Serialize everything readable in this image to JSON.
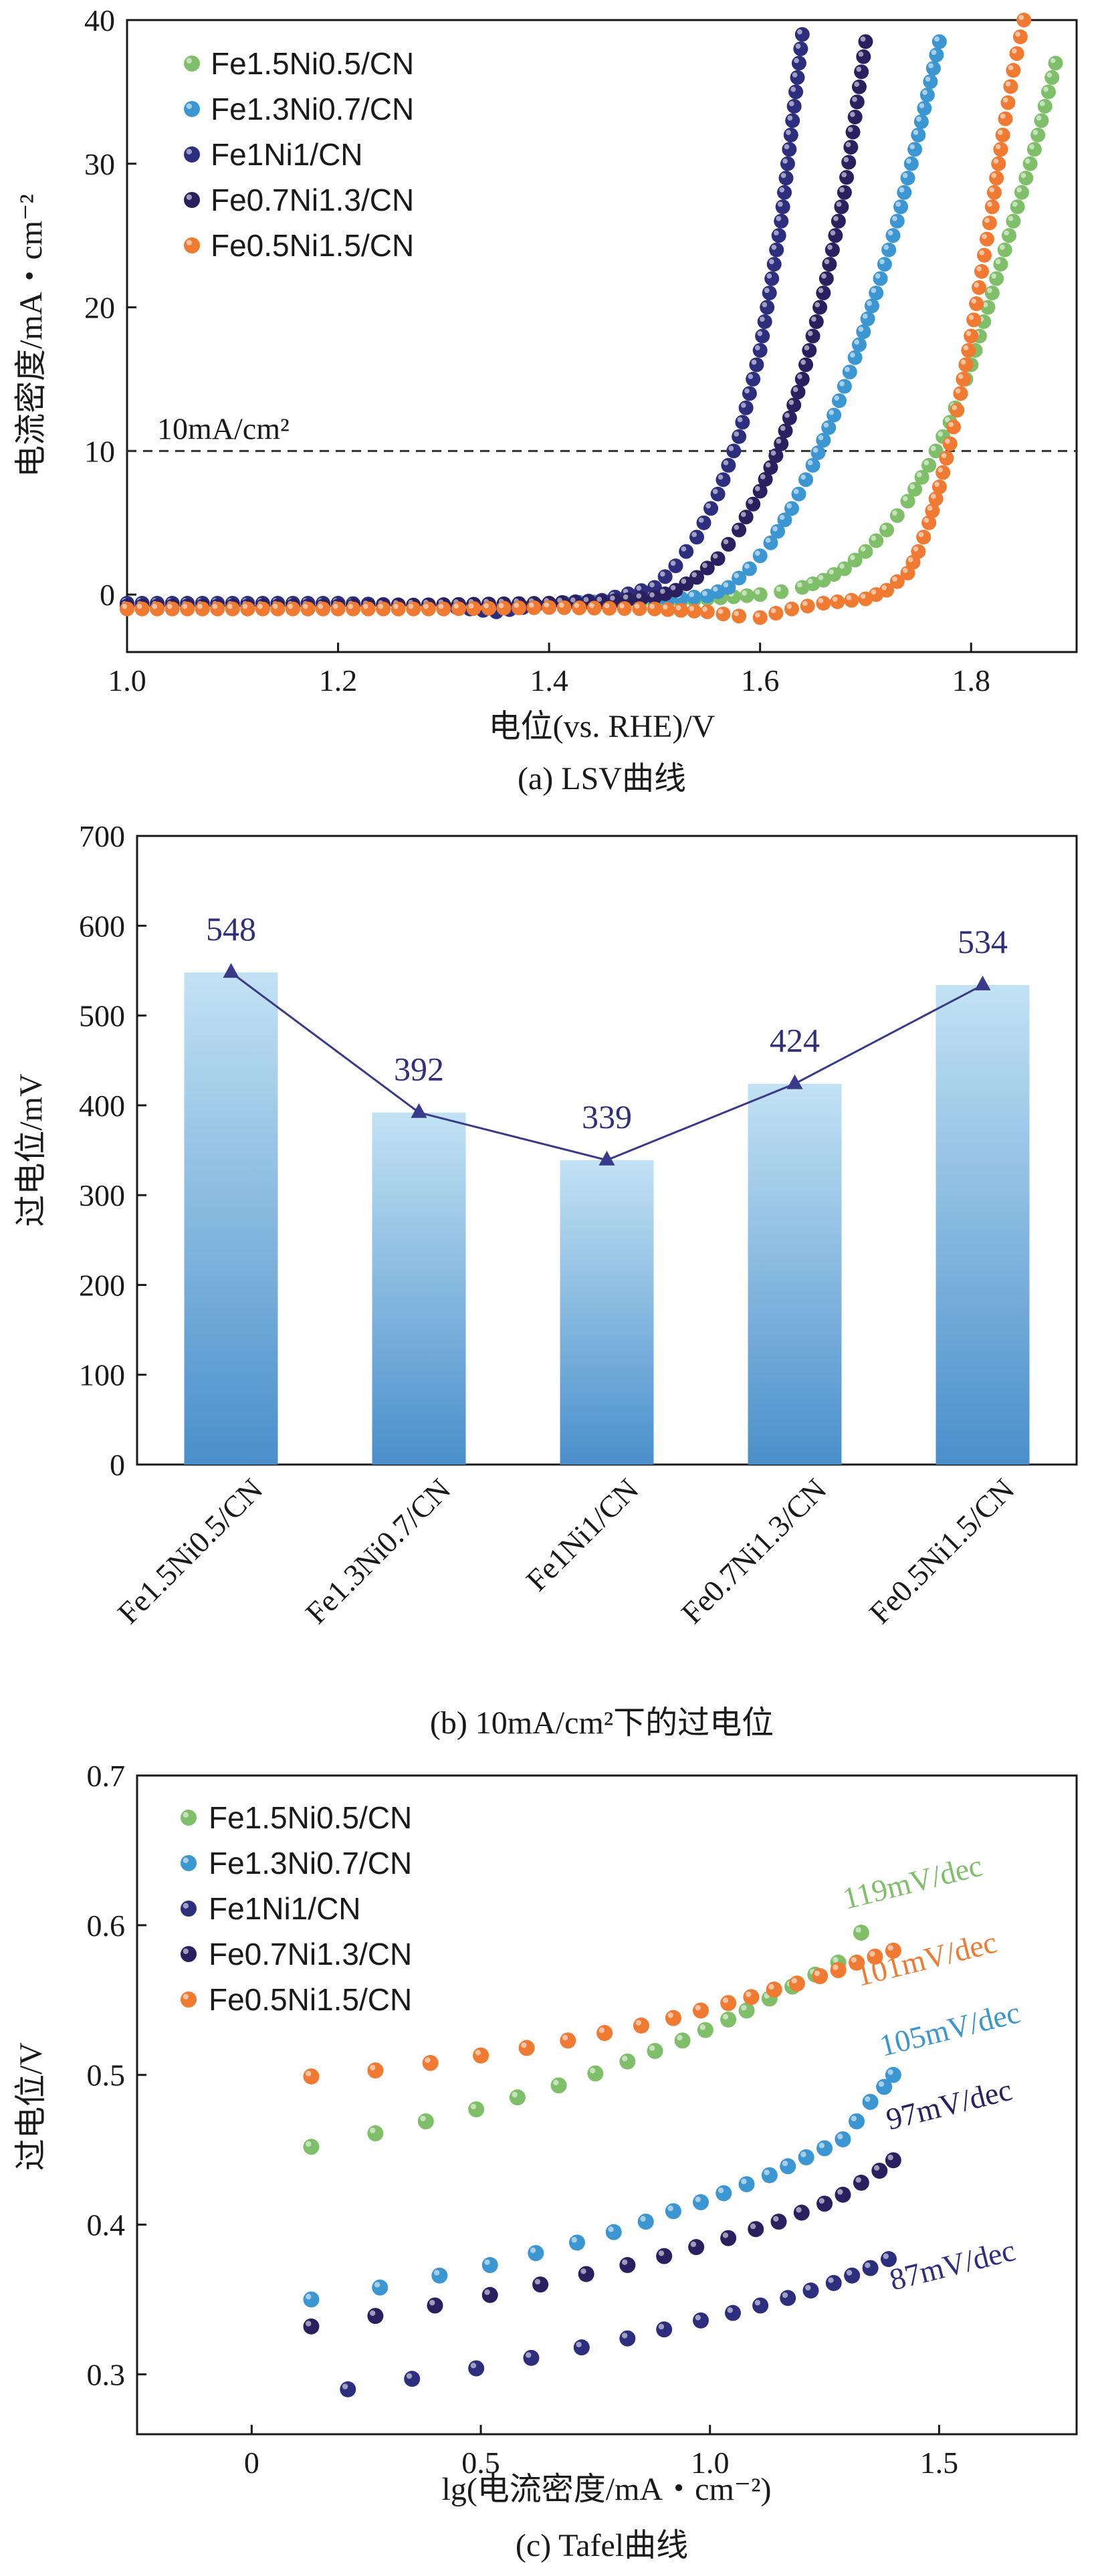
{
  "chart_data": [
    {
      "type": "scatter",
      "panel": "a",
      "caption": "(a) LSV曲线",
      "xlabel": "电位(vs. RHE)/V",
      "ylabel": "电流密度/mA・cm⁻²",
      "xlim": [
        1.0,
        1.9
      ],
      "ylim": [
        -4,
        40
      ],
      "xticks": [
        "1.0",
        "1.2",
        "1.4",
        "1.6",
        "1.8"
      ],
      "yticks": [
        "0",
        "10",
        "20",
        "30",
        "40"
      ],
      "reference_line": {
        "y": 10,
        "label": "10mA/cm²"
      },
      "legend_position": "top-left",
      "series": [
        {
          "name": "Fe1.5Ni0.5/CN",
          "color": "#7fbf6a",
          "x": [
            1.0,
            1.1,
            1.2,
            1.3,
            1.4,
            1.5,
            1.55,
            1.6,
            1.62,
            1.64,
            1.66,
            1.68,
            1.7,
            1.72,
            1.74,
            1.76,
            1.78,
            1.8,
            1.82,
            1.84,
            1.86,
            1.88
          ],
          "y": [
            -1,
            -1,
            -1,
            -1,
            -0.8,
            -0.6,
            -0.3,
            0,
            0.2,
            0.5,
            1,
            1.8,
            3,
            4.5,
            6.5,
            9,
            12,
            16,
            21,
            26,
            31,
            37
          ]
        },
        {
          "name": "Fe1.3Ni0.7/CN",
          "color": "#3c96d2",
          "x": [
            1.0,
            1.1,
            1.2,
            1.3,
            1.4,
            1.5,
            1.55,
            1.57,
            1.59,
            1.61,
            1.63,
            1.65,
            1.67,
            1.69,
            1.71,
            1.73,
            1.75,
            1.77
          ],
          "y": [
            -0.8,
            -0.8,
            -0.8,
            -0.7,
            -0.6,
            -0.4,
            -0.1,
            0.5,
            1.8,
            3.6,
            6,
            9,
            12.5,
            16.5,
            21,
            26,
            32,
            38.5
          ]
        },
        {
          "name": "Fe1Ni1/CN",
          "color": "#2e2e7e",
          "x": [
            1.0,
            1.1,
            1.2,
            1.3,
            1.35,
            1.4,
            1.45,
            1.5,
            1.52,
            1.54,
            1.56,
            1.58,
            1.6,
            1.62,
            1.64
          ],
          "y": [
            -0.6,
            -0.6,
            -0.6,
            -0.8,
            -1.2,
            -0.6,
            -0.4,
            0.5,
            2,
            4,
            7,
            11,
            17,
            26,
            39
          ]
        },
        {
          "name": "Fe0.7Ni1.3/CN",
          "color": "#2a205f",
          "x": [
            1.0,
            1.1,
            1.2,
            1.3,
            1.4,
            1.45,
            1.5,
            1.52,
            1.54,
            1.56,
            1.58,
            1.6,
            1.62,
            1.64,
            1.66,
            1.68,
            1.7
          ],
          "y": [
            -0.8,
            -0.8,
            -0.8,
            -0.7,
            -0.6,
            -0.5,
            -0.2,
            0.3,
            1.2,
            2.5,
            4.5,
            7.2,
            10.5,
            15,
            21,
            28,
            38.5
          ]
        },
        {
          "name": "Fe0.5Ni1.5/CN",
          "color": "#f07a32",
          "x": [
            1.0,
            1.1,
            1.2,
            1.3,
            1.4,
            1.5,
            1.55,
            1.58,
            1.6,
            1.63,
            1.66,
            1.7,
            1.72,
            1.74,
            1.75,
            1.76,
            1.77,
            1.78,
            1.79,
            1.8,
            1.81,
            1.82,
            1.83,
            1.84,
            1.85
          ],
          "y": [
            -1,
            -1,
            -1,
            -1,
            -0.9,
            -1,
            -1.2,
            -1.5,
            -1.6,
            -1,
            -0.6,
            -0.3,
            0.3,
            1.5,
            3,
            5,
            7.5,
            10.5,
            14,
            18,
            22.5,
            27,
            32,
            36.5,
            40
          ]
        }
      ]
    },
    {
      "type": "bar",
      "panel": "b",
      "caption": "(b) 10mA/cm²下的过电位",
      "ylabel": "过电位/mV",
      "ylim": [
        0,
        700
      ],
      "yticks": [
        "0",
        "100",
        "200",
        "300",
        "400",
        "500",
        "600",
        "700"
      ],
      "categories": [
        "Fe1.5Ni0.5/CN",
        "Fe1.3Ni0.7/CN",
        "Fe1Ni1/CN",
        "Fe0.7Ni1.3/CN",
        "Fe0.5Ni1.5/CN"
      ],
      "values": [
        548,
        392,
        339,
        424,
        534
      ],
      "labels": [
        "548",
        "392",
        "339",
        "424",
        "534"
      ],
      "line_overlay": true,
      "colors": {
        "bar_top": "#c2e2f4",
        "bar_bottom": "#4a8fcb",
        "line": "#3a3a8a"
      }
    },
    {
      "type": "scatter",
      "panel": "c",
      "caption": "(c) Tafel曲线",
      "xlabel": "lg(电流密度/mA・cm⁻²)",
      "ylabel": "过电位/V",
      "xlim": [
        -0.25,
        1.8
      ],
      "ylim": [
        0.26,
        0.7
      ],
      "xticks": [
        "0",
        "0.5",
        "1.0",
        "1.5"
      ],
      "yticks": [
        "0.3",
        "0.4",
        "0.5",
        "0.6",
        "0.7"
      ],
      "legend_position": "top-left",
      "series": [
        {
          "name": "Fe1.5Ni0.5/CN",
          "color": "#7fbf6a",
          "slope_label": "119mV/dec",
          "x": [
            0.13,
            0.27,
            0.38,
            0.49,
            0.58,
            0.67,
            0.75,
            0.82,
            0.88,
            0.94,
            0.99,
            1.04,
            1.08,
            1.13,
            1.18,
            1.23,
            1.28,
            1.33
          ],
          "y": [
            0.452,
            0.461,
            0.469,
            0.477,
            0.485,
            0.493,
            0.501,
            0.509,
            0.516,
            0.523,
            0.53,
            0.537,
            0.543,
            0.551,
            0.559,
            0.567,
            0.575,
            0.595
          ]
        },
        {
          "name": "Fe1.3Ni0.7/CN",
          "color": "#3c96d2",
          "slope_label": "105mV/dec",
          "x": [
            0.13,
            0.28,
            0.41,
            0.52,
            0.62,
            0.71,
            0.79,
            0.86,
            0.92,
            0.98,
            1.03,
            1.08,
            1.13,
            1.17,
            1.21,
            1.25,
            1.29,
            1.32,
            1.35,
            1.38,
            1.4
          ],
          "y": [
            0.35,
            0.358,
            0.366,
            0.373,
            0.381,
            0.388,
            0.395,
            0.402,
            0.409,
            0.415,
            0.421,
            0.427,
            0.433,
            0.439,
            0.445,
            0.451,
            0.457,
            0.469,
            0.482,
            0.492,
            0.5
          ]
        },
        {
          "name": "Fe1Ni1/CN",
          "color": "#2e2e7e",
          "slope_label": "87mV/dec",
          "x": [
            0.21,
            0.35,
            0.49,
            0.61,
            0.72,
            0.82,
            0.9,
            0.98,
            1.05,
            1.11,
            1.17,
            1.22,
            1.27,
            1.31,
            1.35,
            1.39
          ],
          "y": [
            0.29,
            0.297,
            0.304,
            0.311,
            0.318,
            0.324,
            0.33,
            0.336,
            0.341,
            0.346,
            0.351,
            0.356,
            0.361,
            0.366,
            0.371,
            0.377
          ]
        },
        {
          "name": "Fe0.7Ni1.3/CN",
          "color": "#2a205f",
          "slope_label": "97mV/dec",
          "x": [
            0.13,
            0.27,
            0.4,
            0.52,
            0.63,
            0.73,
            0.82,
            0.9,
            0.97,
            1.04,
            1.1,
            1.15,
            1.2,
            1.25,
            1.29,
            1.33,
            1.37,
            1.4
          ],
          "y": [
            0.332,
            0.339,
            0.346,
            0.353,
            0.36,
            0.367,
            0.373,
            0.379,
            0.385,
            0.391,
            0.397,
            0.402,
            0.408,
            0.414,
            0.42,
            0.428,
            0.436,
            0.443
          ]
        },
        {
          "name": "Fe0.5Ni1.5/CN",
          "color": "#f07a32",
          "slope_label": "101mV/dec",
          "x": [
            0.13,
            0.27,
            0.39,
            0.5,
            0.6,
            0.69,
            0.77,
            0.85,
            0.92,
            0.98,
            1.04,
            1.09,
            1.14,
            1.19,
            1.24,
            1.28,
            1.32,
            1.36,
            1.4
          ],
          "y": [
            0.499,
            0.503,
            0.508,
            0.513,
            0.518,
            0.523,
            0.528,
            0.533,
            0.538,
            0.543,
            0.548,
            0.552,
            0.557,
            0.561,
            0.566,
            0.57,
            0.575,
            0.579,
            0.583
          ]
        }
      ]
    }
  ]
}
